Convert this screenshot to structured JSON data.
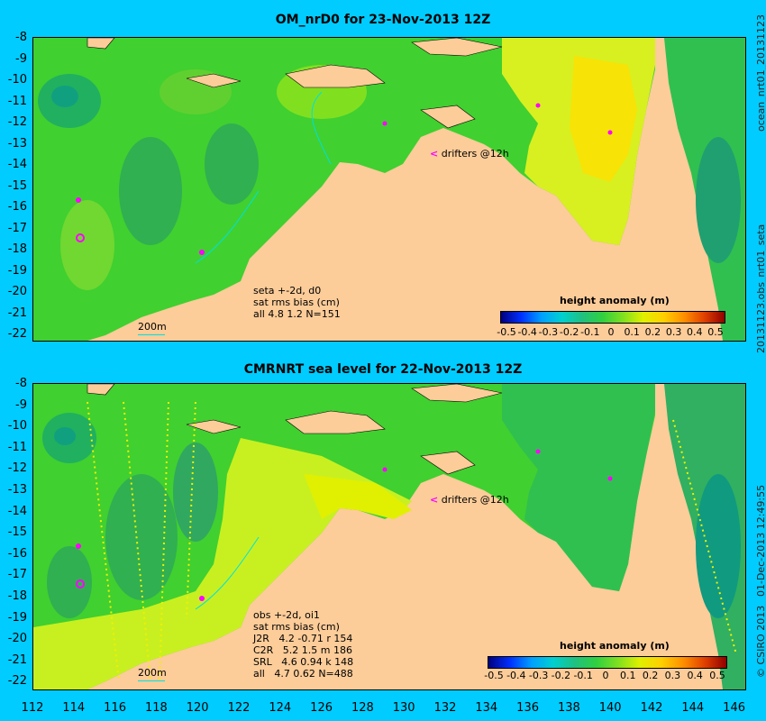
{
  "panels": [
    {
      "title": "OM_nrD0 for 23-Nov-2013 12Z",
      "notes": "seta +-2d, d0\nsat rms bias (cm)\nall 4.8 1.2 N=151",
      "legend_title": "height anomaly (m)",
      "drifters_label": "drifters @12h",
      "scale_label": "200m",
      "side_label": "20131123.obs_nrt01_seta",
      "side_label_top": "ocean_nrt01_20131123"
    },
    {
      "title": "CMRNRT sea level  for 22-Nov-2013 12Z",
      "notes": "obs +-2d, oi1\nsat rms bias (cm)\nJ2R   4.2 -0.71 r 154\nC2R   5.2 1.5 m 186\nSRL   4.6 0.94 k 148\nall   4.7 0.62 N=488",
      "legend_title": "height anomaly (m)",
      "drifters_label": "drifters @12h",
      "scale_label": "200m",
      "side_label": "01-Dec-2013 12:49:55",
      "side_label_top": "© CSIRO 2013"
    }
  ],
  "y_ticks": [
    "-8",
    "-9",
    "-10",
    "-11",
    "-12",
    "-13",
    "-14",
    "-15",
    "-16",
    "-17",
    "-18",
    "-19",
    "-20",
    "-21",
    "-22"
  ],
  "x_ticks": [
    "112",
    "114",
    "116",
    "118",
    "120",
    "122",
    "124",
    "126",
    "128",
    "130",
    "132",
    "134",
    "136",
    "138",
    "140",
    "142",
    "144",
    "146"
  ],
  "colorbar_ticks": [
    "-0.5",
    "-0.4",
    "-0.3",
    "-0.2",
    "-0.1",
    "0",
    "0.1",
    "0.2",
    "0.3",
    "0.4",
    "0.5"
  ],
  "colors": {
    "background": "#00ccff",
    "land": "#fccc99",
    "drifter": "#ff00ff"
  }
}
